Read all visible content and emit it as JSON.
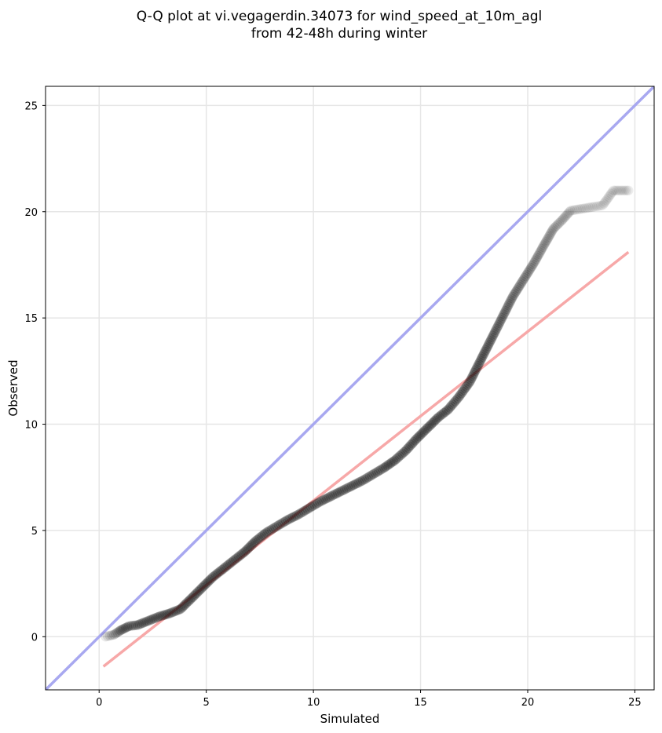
{
  "chart_data": {
    "type": "scatter",
    "title_lines": [
      "Q-Q plot at vi.vegagerdin.34073 for wind_speed_at_10m_agl",
      "from 42-48h during winter"
    ],
    "xlabel": "Simulated",
    "ylabel": "Observed",
    "xlim": [
      -2.5,
      25.9
    ],
    "ylim": [
      -2.5,
      25.9
    ],
    "xticks": [
      0,
      5,
      10,
      15,
      20,
      25
    ],
    "yticks": [
      0,
      5,
      10,
      15,
      20,
      25
    ],
    "grid": true,
    "reference_line": {
      "slope": 1,
      "intercept": 0,
      "color": "#a8a8f0"
    },
    "fit_line": {
      "x": [
        0.2,
        24.7
      ],
      "y": [
        -1.4,
        18.1
      ],
      "color": "#f7a8a8"
    },
    "point_color": "#000000",
    "quantiles": [
      [
        0.3,
        0.0
      ],
      [
        0.7,
        0.1
      ],
      [
        1.0,
        0.3
      ],
      [
        1.4,
        0.5
      ],
      [
        1.8,
        0.55
      ],
      [
        2.3,
        0.75
      ],
      [
        2.8,
        0.95
      ],
      [
        3.3,
        1.1
      ],
      [
        3.8,
        1.3
      ],
      [
        4.3,
        1.8
      ],
      [
        4.8,
        2.3
      ],
      [
        5.3,
        2.8
      ],
      [
        5.8,
        3.2
      ],
      [
        6.3,
        3.6
      ],
      [
        6.8,
        4.0
      ],
      [
        7.3,
        4.5
      ],
      [
        7.8,
        4.9
      ],
      [
        8.3,
        5.2
      ],
      [
        8.8,
        5.5
      ],
      [
        9.3,
        5.75
      ],
      [
        9.8,
        6.05
      ],
      [
        10.3,
        6.35
      ],
      [
        10.8,
        6.6
      ],
      [
        11.3,
        6.85
      ],
      [
        11.8,
        7.1
      ],
      [
        12.3,
        7.35
      ],
      [
        12.8,
        7.65
      ],
      [
        13.3,
        7.95
      ],
      [
        13.8,
        8.3
      ],
      [
        14.3,
        8.75
      ],
      [
        14.8,
        9.3
      ],
      [
        15.3,
        9.8
      ],
      [
        15.8,
        10.3
      ],
      [
        16.3,
        10.7
      ],
      [
        16.8,
        11.3
      ],
      [
        17.3,
        12.0
      ],
      [
        17.8,
        13.0
      ],
      [
        18.3,
        14.0
      ],
      [
        18.8,
        15.0
      ],
      [
        19.3,
        16.0
      ],
      [
        19.8,
        16.8
      ],
      [
        20.3,
        17.6
      ],
      [
        20.8,
        18.5
      ],
      [
        21.2,
        19.2
      ],
      [
        21.6,
        19.6
      ],
      [
        22.0,
        20.05
      ],
      [
        22.3,
        20.1
      ],
      [
        23.5,
        20.3
      ],
      [
        24.0,
        21.0
      ],
      [
        24.7,
        21.0
      ]
    ]
  }
}
